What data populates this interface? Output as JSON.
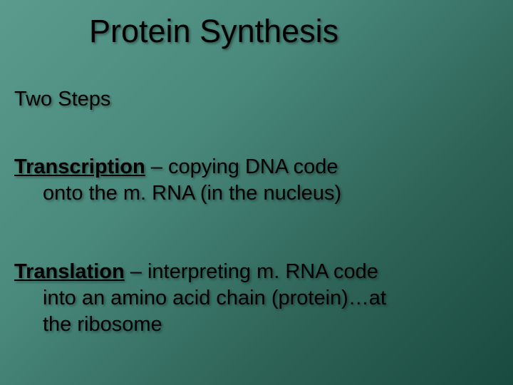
{
  "slide": {
    "background_gradient": [
      "#5a9b8e",
      "#4a8a7d",
      "#2d6356",
      "#1a4a3f"
    ],
    "text_color": "#000000",
    "text_shadow": "2px 2px 3px rgba(0,0,0,0.4)",
    "title": {
      "text": "Protein Synthesis",
      "font_family": "Arial",
      "font_size_pt": 34,
      "font_weight": 400
    },
    "subheading": {
      "text": "Two Steps",
      "font_family": "Verdana",
      "font_size_pt": 22
    },
    "body_font_size_pt": 22,
    "paragraphs": [
      {
        "term": "Transcription",
        "rest_line1": " – copying DNA code",
        "line2": "onto the m. RNA  (in the nucleus)"
      },
      {
        "term": "Translation",
        "rest_line1": " – interpreting m. RNA code",
        "line2": "into an amino acid chain (protein)…at",
        "line3": "the ribosome"
      }
    ]
  }
}
